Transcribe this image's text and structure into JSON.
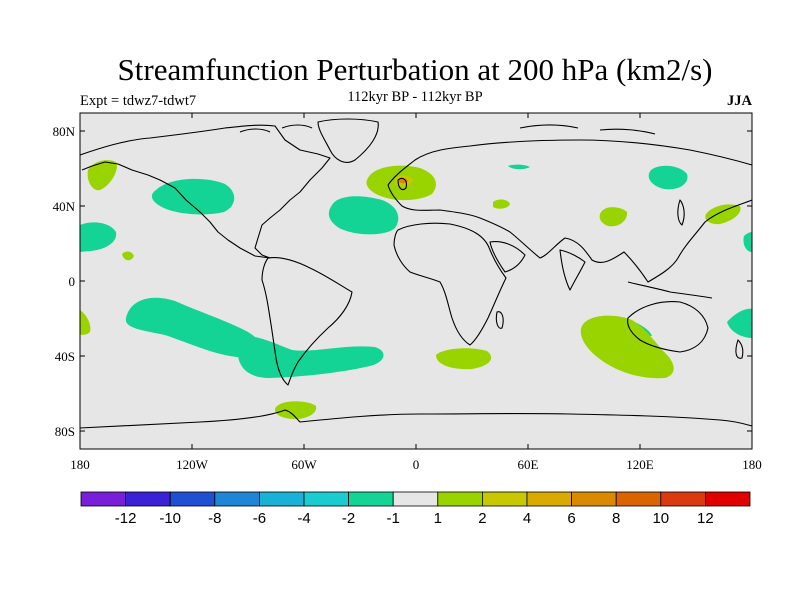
{
  "map": {
    "title": "Streamfunction Perturbation at 200 hPa (km2/s)",
    "left_string": "Expt = tdwz7-tdwt7",
    "center_string": "112kyr BP - 112kyr BP",
    "right_string": "JJA",
    "lat_ticks": [
      "80N",
      "40N",
      "0",
      "40S",
      "80S"
    ],
    "lon_ticks": [
      "180",
      "120W",
      "60W",
      "0",
      "60E",
      "120E",
      "180"
    ]
  },
  "colorbar": {
    "colors": [
      "#7a1fd9",
      "#3b22d6",
      "#1f4fd3",
      "#1f86d6",
      "#19b2d6",
      "#19ccd0",
      "#14d495",
      "#e6e6e6",
      "#9ad400",
      "#c8c800",
      "#d9ab00",
      "#d98a00",
      "#d96400",
      "#db3a10",
      "#e00000"
    ],
    "labels": [
      "-12",
      "-10",
      "-8",
      "-6",
      "-4",
      "-2",
      "-1",
      "1",
      "2",
      "4",
      "6",
      "8",
      "10",
      "12"
    ]
  },
  "colors": {
    "land_ocean_background": "#e6e6e6",
    "negative_anomaly": "#14d495",
    "positive_anomaly": "#9ad400",
    "strong_positive": "#c8c800"
  }
}
